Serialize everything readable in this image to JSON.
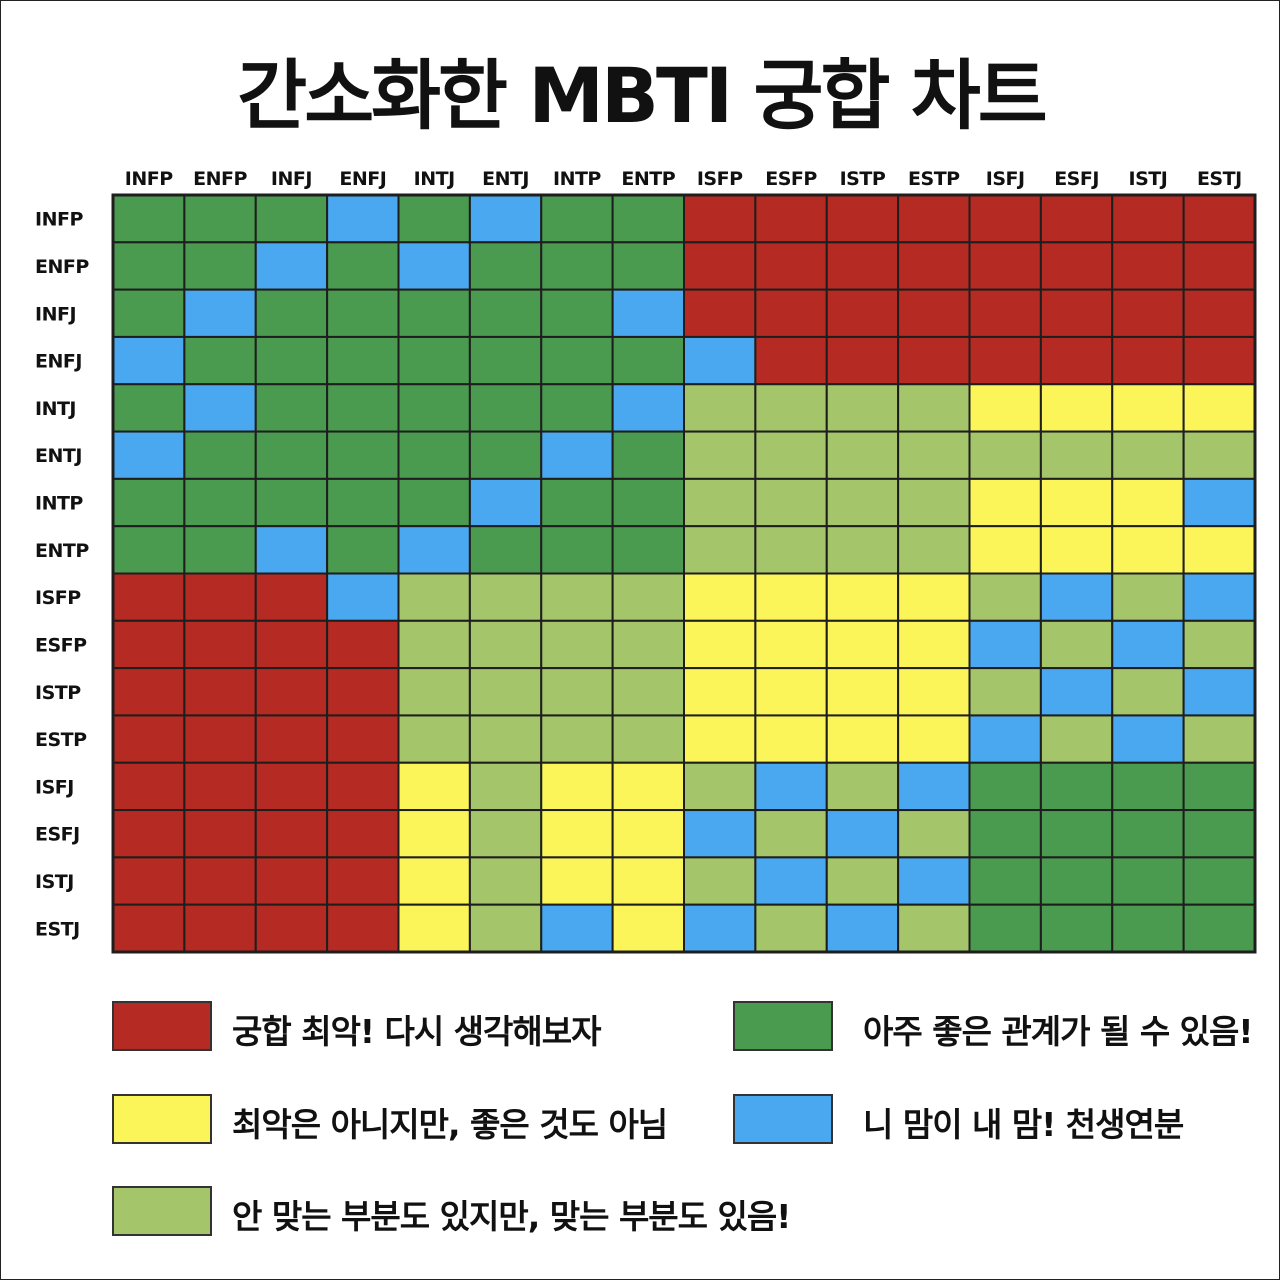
{
  "title": "간소화한 MBTI 궁합 차트",
  "chart_data": {
    "type": "heatmap",
    "columns": [
      "INFP",
      "ENFP",
      "INFJ",
      "ENFJ",
      "INTJ",
      "ENTJ",
      "INTP",
      "ENTP",
      "ISFP",
      "ESFP",
      "ISTP",
      "ESTP",
      "ISFJ",
      "ESFJ",
      "ISTJ",
      "ESTJ"
    ],
    "rows": [
      "INFP",
      "ENFP",
      "INFJ",
      "ENFJ",
      "INTJ",
      "ENTJ",
      "INTP",
      "ENTP",
      "ISFP",
      "ESFP",
      "ISTP",
      "ESTP",
      "ISFJ",
      "ESFJ",
      "ISTJ",
      "ESTJ"
    ],
    "colors": {
      "R": "#b52b23",
      "G": "#4a9a50",
      "B": "#4aa8f0",
      "Y": "#fcf55a",
      "L": "#a4c56a"
    },
    "matrix": [
      "GGGBGBGGRRRRRRRR",
      "GGBGBGGGRRRRRRRR",
      "GBGGGGGBRRRRRRRR",
      "BGGGGGGGBRRRRRRR",
      "GBGGGGGBLLLLYYYY",
      "BGGGGGBGLLLLLLLL",
      "GGGGGBGGLLLLYYYB",
      "GGBGBGGGLLLLYYYY",
      "RRRBLLLLYYYYLBLB",
      "RRRRLLLLYYYYBLBL",
      "RRRRLLLLYYYYLBLB",
      "RRRRLLLLYYYYBLBL",
      "RRRRYLYYLBLBGGGG",
      "RRRRYLYYBLBLGGGG",
      "RRRRYLYYLBLBGGGG",
      "RRRRYLBYBLBLGGGG"
    ],
    "legend": [
      {
        "key": "R",
        "label": "궁합 최악! 다시 생각해보자"
      },
      {
        "key": "G",
        "label": "아주 좋은 관계가 될 수 있음!"
      },
      {
        "key": "Y",
        "label": "최악은 아니지만, 좋은 것도 아님"
      },
      {
        "key": "B",
        "label": "니 맘이 내 맘! 천생연분"
      },
      {
        "key": "L",
        "label": "안 맞는 부분도 있지만, 맞는 부분도 있음!"
      }
    ]
  }
}
